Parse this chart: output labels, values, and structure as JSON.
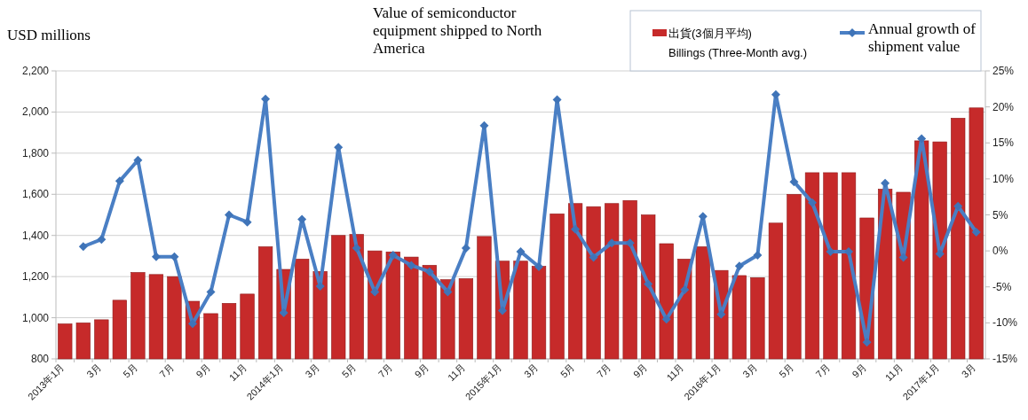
{
  "chart_data": {
    "type": "bar",
    "title": "Value of semiconductor equipment shipped to North America",
    "ylabel": "USD millions",
    "categories": [
      "2013年1月",
      null,
      "3月",
      null,
      "5月",
      null,
      "7月",
      null,
      "9月",
      null,
      "11月",
      null,
      "2014年1月",
      null,
      "3月",
      null,
      "5月",
      null,
      "7月",
      null,
      "9月",
      null,
      "11月",
      null,
      "2015年1月",
      null,
      "3月",
      null,
      "5月",
      null,
      "7月",
      null,
      "9月",
      null,
      "11月",
      null,
      "2016年1月",
      null,
      "3月",
      null,
      "5月",
      null,
      "7月",
      null,
      "9月",
      null,
      "11月",
      null,
      "2017年1月",
      null,
      "3月"
    ],
    "series": [
      {
        "name": "出貨(3個月平均)\nBillings (Three-Month avg.)",
        "color": "#c62a2a",
        "values": [
          970,
          975,
          990,
          1085,
          1220,
          1210,
          1200,
          1080,
          1020,
          1070,
          1115,
          1345,
          1235,
          1285,
          1225,
          1400,
          1405,
          1325,
          1320,
          1295,
          1255,
          1185,
          1190,
          1395,
          1275,
          1275,
          1250,
          1505,
          1555,
          1540,
          1555,
          1570,
          1500,
          1360,
          1285,
          1345,
          1230,
          1205,
          1195,
          1460,
          1600,
          1705,
          1705,
          1705,
          1485,
          1625,
          1610,
          1860,
          1855,
          1970,
          2020
        ]
      },
      {
        "name": "Annual growth of shipment value",
        "type": "line",
        "axis": "y2",
        "color": "#4a7fc4",
        "values": [
          null,
          0.6,
          1.6,
          9.7,
          12.6,
          -0.8,
          -0.8,
          -10.1,
          -5.7,
          5.0,
          4.0,
          21.1,
          -8.6,
          4.4,
          -4.9,
          14.4,
          0.4,
          -5.7,
          -0.6,
          -2.0,
          -2.9,
          -5.7,
          0.4,
          17.4,
          -8.3,
          -0.1,
          -2.2,
          21.0,
          3.0,
          -0.9,
          1.1,
          1.1,
          -4.6,
          -9.5,
          -5.4,
          4.8,
          -8.8,
          -2.1,
          -0.6,
          21.7,
          9.6,
          6.7,
          -0.1,
          -0.1,
          -12.7,
          9.4,
          -0.9,
          15.6,
          -0.4,
          6.2,
          2.6
        ]
      }
    ],
    "ylim": [
      800,
      2200
    ],
    "yticks": [
      {
        "value": 800,
        "label": "800"
      },
      {
        "value": 1000,
        "label": "1,000"
      },
      {
        "value": 1200,
        "label": "1,200"
      },
      {
        "value": 1400,
        "label": "1,400"
      },
      {
        "value": 1600,
        "label": "1,600"
      },
      {
        "value": 1800,
        "label": "1,800"
      },
      {
        "value": 2000,
        "label": "2,000"
      },
      {
        "value": 2200,
        "label": "2,200"
      }
    ],
    "y2lim": [
      -15,
      25
    ],
    "y2ticks": [
      {
        "value": -15,
        "label": "-15%"
      },
      {
        "value": -10,
        "label": "-10%"
      },
      {
        "value": -5,
        "label": "-5%"
      },
      {
        "value": 0,
        "label": "0%"
      },
      {
        "value": 5,
        "label": "5%"
      },
      {
        "value": 10,
        "label": "10%"
      },
      {
        "value": 15,
        "label": "15%"
      },
      {
        "value": 20,
        "label": "20%"
      },
      {
        "value": 25,
        "label": "25%"
      }
    ],
    "grid": "y",
    "legend": "top right",
    "marker": "diamond",
    "line_style": "solid"
  }
}
